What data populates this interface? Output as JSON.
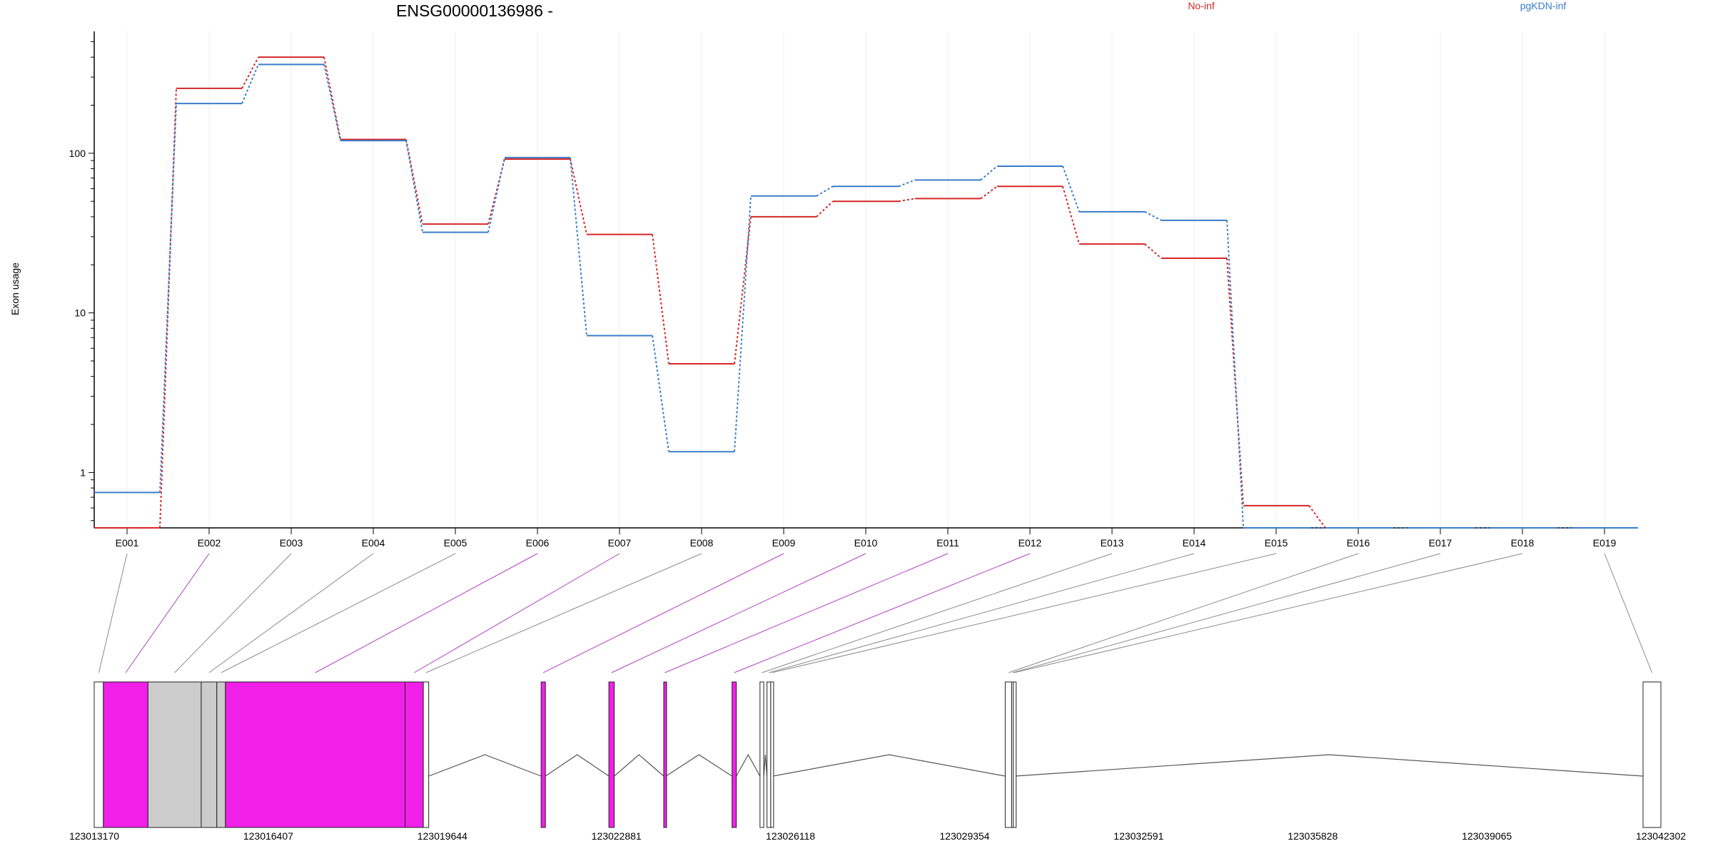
{
  "chart_data": {
    "type": "line",
    "title": "ENSG00000136986 -",
    "ylabel": "Exon usage",
    "y_scale": "log",
    "ylim": [
      0.45,
      580
    ],
    "y_ticks": [
      1,
      10,
      100
    ],
    "y_tick_labels": [
      "1",
      "10",
      "100"
    ],
    "grid": "vertical",
    "legend_placement": "top",
    "categories": [
      "E001",
      "E002",
      "E003",
      "E004",
      "E005",
      "E006",
      "E007",
      "E008",
      "E009",
      "E010",
      "E011",
      "E012",
      "E013",
      "E014",
      "E015",
      "E016",
      "E017",
      "E018",
      "E019"
    ],
    "series": [
      {
        "name": "No-inf",
        "color": "#d62728",
        "values": [
          0.45,
          255,
          400,
          122,
          36,
          92,
          31,
          4.8,
          40,
          50,
          52,
          62,
          27,
          22,
          0.62,
          0.45,
          0.45,
          0.45,
          0.45
        ]
      },
      {
        "name": "pgKDN-inf",
        "color": "#3a7dc9",
        "values": [
          0.75,
          205,
          360,
          120,
          32,
          94,
          7.2,
          1.35,
          54,
          62,
          68,
          83,
          43,
          38,
          0.45,
          0.45,
          0.45,
          0.45,
          0.45
        ]
      }
    ],
    "gene_model": {
      "coordinate_labels": [
        "123013170",
        "123016407",
        "123019644",
        "123022881",
        "123026118",
        "123029354",
        "123032591",
        "123035828",
        "123039065",
        "123042302"
      ],
      "coordinate_range": [
        123013170,
        123042302
      ],
      "highlight_color": "#f020e8",
      "neutral_color": "#cccccc",
      "exons": [
        {
          "id": "E001",
          "start": 123013170,
          "end": 123013340,
          "status": "plain"
        },
        {
          "id": "E002",
          "start": 123013340,
          "end": 123014170,
          "status": "highlight"
        },
        {
          "id": "E003",
          "start": 123014170,
          "end": 123015160,
          "status": "neutral"
        },
        {
          "id": "E004",
          "start": 123015160,
          "end": 123015450,
          "status": "neutral"
        },
        {
          "id": "E005",
          "start": 123015450,
          "end": 123015610,
          "status": "neutral"
        },
        {
          "id": "E006",
          "start": 123015610,
          "end": 123018950,
          "status": "highlight"
        },
        {
          "id": "E007",
          "start": 123018950,
          "end": 123019290,
          "status": "highlight"
        },
        {
          "id": "E008",
          "start": 123019290,
          "end": 123019390,
          "status": "plain"
        },
        {
          "id": "E009",
          "start": 123021480,
          "end": 123021560,
          "status": "highlight"
        },
        {
          "id": "E010",
          "start": 123022740,
          "end": 123022840,
          "status": "highlight"
        },
        {
          "id": "E011",
          "start": 123023760,
          "end": 123023800,
          "status": "highlight"
        },
        {
          "id": "E012",
          "start": 123025030,
          "end": 123025110,
          "status": "highlight"
        },
        {
          "id": "E013",
          "start": 123025550,
          "end": 123025620,
          "status": "plain"
        },
        {
          "id": "E014",
          "start": 123025680,
          "end": 123025750,
          "status": "plain"
        },
        {
          "id": "E015",
          "start": 123025750,
          "end": 123025790,
          "status": "plain"
        },
        {
          "id": "E016",
          "start": 123030110,
          "end": 123030230,
          "status": "plain"
        },
        {
          "id": "E017",
          "start": 123030230,
          "end": 123030260,
          "status": "plain"
        },
        {
          "id": "E018",
          "start": 123030260,
          "end": 123030290,
          "status": "plain"
        },
        {
          "id": "E019",
          "start": 123041970,
          "end": 123042302,
          "status": "plain"
        }
      ]
    }
  }
}
